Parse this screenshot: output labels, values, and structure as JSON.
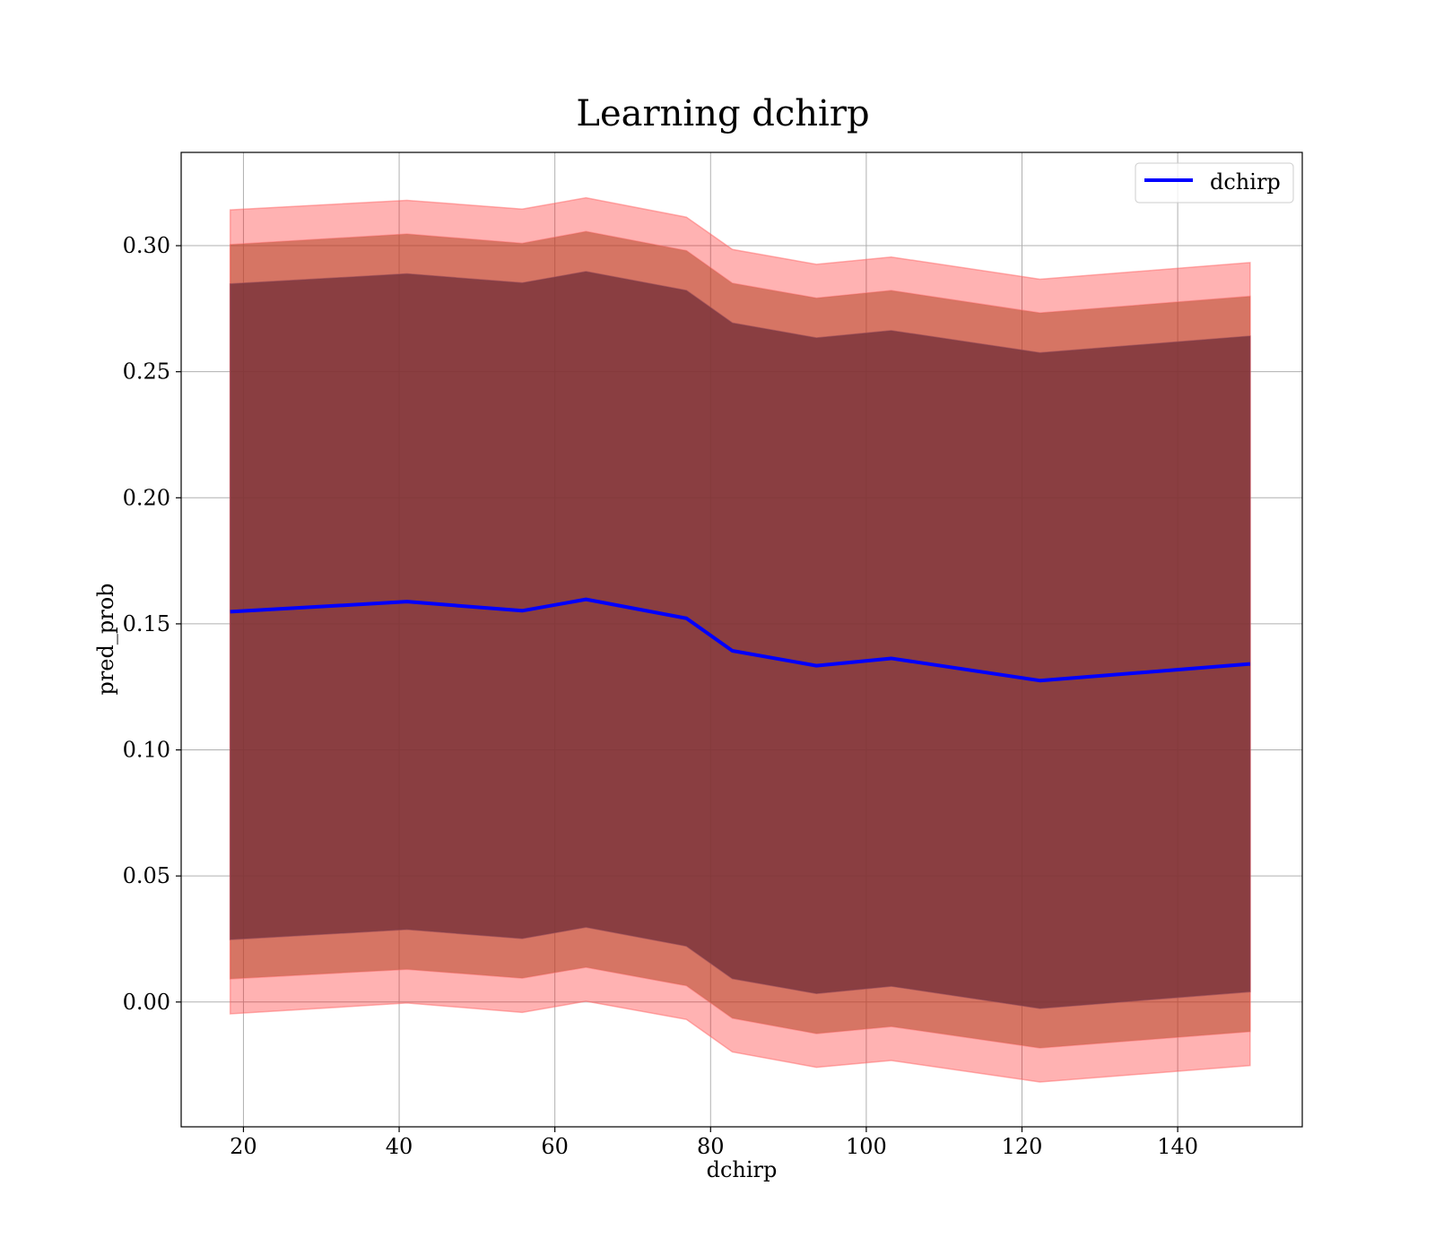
{
  "chart_data": {
    "type": "line",
    "title": "Learning dchirp",
    "xlabel": "dchirp",
    "ylabel": "pred_prob",
    "xlim": [
      12,
      156
    ],
    "ylim": [
      -0.0495,
      0.337
    ],
    "xticks": [
      20,
      40,
      60,
      80,
      100,
      120,
      140
    ],
    "yticks": [
      0.0,
      0.05,
      0.1,
      0.15,
      0.2,
      0.25,
      0.3
    ],
    "xtick_labels": [
      "20",
      "40",
      "60",
      "80",
      "100",
      "120",
      "140"
    ],
    "ytick_labels": [
      "0.00",
      "0.05",
      "0.10",
      "0.15",
      "0.20",
      "0.25",
      "0.30"
    ],
    "grid": true,
    "legend_position": "top-right",
    "colors": {
      "line": "#0000ff",
      "band": "#ff0000",
      "band_edge": "#ff6666",
      "inner_band": "#5b1f2c"
    },
    "x": [
      18.3,
      41.0,
      55.8,
      64.0,
      76.9,
      82.8,
      93.6,
      103.2,
      122.3,
      149.3
    ],
    "series": [
      {
        "name": "dchirp",
        "values": [
          0.1548,
          0.1588,
          0.1552,
          0.1597,
          0.1522,
          0.1393,
          0.1334,
          0.1363,
          0.1275,
          0.1341
        ]
      }
    ],
    "bands": [
      {
        "lower": [
          -0.0047,
          -0.0004,
          -0.0041,
          0.0003,
          -0.0069,
          -0.0198,
          -0.0259,
          -0.0232,
          -0.0317,
          -0.0252
        ],
        "upper": [
          0.3142,
          0.318,
          0.3145,
          0.319,
          0.3113,
          0.2985,
          0.2926,
          0.2955,
          0.2867,
          0.2933
        ]
      },
      {
        "lower": [
          0.0092,
          0.013,
          0.0095,
          0.0138,
          0.0065,
          -0.0064,
          -0.0125,
          -0.0097,
          -0.0182,
          -0.0117
        ],
        "upper": [
          0.3004,
          0.3046,
          0.3009,
          0.3056,
          0.298,
          0.2851,
          0.2792,
          0.2822,
          0.2733,
          0.2799
        ]
      },
      {
        "lower": [
          0.0248,
          0.0288,
          0.0252,
          0.0297,
          0.0222,
          0.0093,
          0.0034,
          0.0063,
          -0.0025,
          0.0041
        ],
        "upper": [
          0.2848,
          0.2888,
          0.2852,
          0.2897,
          0.2822,
          0.2693,
          0.2634,
          0.2663,
          0.2575,
          0.2641
        ]
      }
    ]
  }
}
